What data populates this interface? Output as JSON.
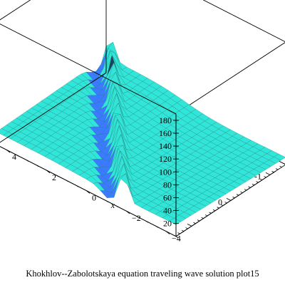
{
  "chart_data": {
    "type": "surface",
    "title": "Khokhlov--Zabolotskaya equation traveling wave solution plot15",
    "xlabel": "x",
    "ylabel": "",
    "zlabel": "",
    "x_ticks": [
      "-4",
      "-2",
      "0",
      "2",
      "4"
    ],
    "y_ticks": [
      "-1",
      "0"
    ],
    "z_ticks": [
      "20",
      "40",
      "60",
      "80",
      "100",
      "120",
      "140",
      "160",
      "180"
    ],
    "xlim": [
      -4.5,
      4.5
    ],
    "ylim": [
      -1.4,
      1.4
    ],
    "zlim": [
      0,
      190
    ],
    "box": true,
    "grid": true,
    "colors": {
      "surface_base": "#31e6d8",
      "mesh": "#1a6f6a",
      "low_band": "#3a7bff",
      "peak": "#e44be8",
      "highlight": "#e8f25a",
      "ridge": "#17475c"
    }
  }
}
